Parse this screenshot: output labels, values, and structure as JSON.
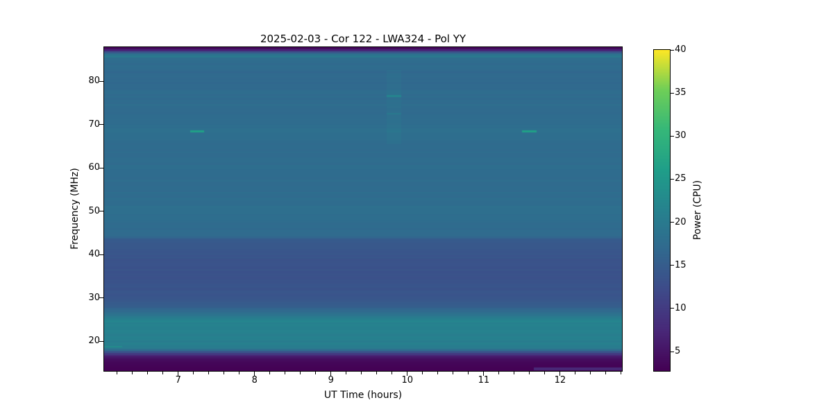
{
  "chart_data": {
    "type": "heatmap",
    "title": "2025-02-03 - Cor 122 - LWA324 - Pol YY",
    "xlabel": "UT Time (hours)",
    "ylabel": "Frequency (MHz)",
    "colorbar_label": "Power (CPU)",
    "colormap": "viridis",
    "colormap_stops": [
      "#440154",
      "#482878",
      "#3e4a89",
      "#31688e",
      "#26828e",
      "#1f9e89",
      "#35b779",
      "#6ece58",
      "#fde725"
    ],
    "x_range_hours": [
      6.03,
      12.81
    ],
    "y_range_mhz": [
      13.12,
      87.84
    ],
    "color_range_cpu": [
      2.75,
      40
    ],
    "x_ticks": [
      7,
      8,
      9,
      10,
      11,
      12
    ],
    "x_minor_tick_step_hours": 0.2,
    "y_ticks": [
      20,
      30,
      40,
      50,
      60,
      70,
      80
    ],
    "colorbar_ticks": [
      5,
      10,
      15,
      20,
      25,
      30,
      35,
      40
    ],
    "grid": false,
    "channel_width_mhz": 0.47,
    "frequency_power_profile": [
      [
        13.12,
        2.85
      ],
      [
        14.0,
        2.95
      ],
      [
        15.0,
        3.4
      ],
      [
        15.8,
        4.3
      ],
      [
        16.4,
        6.0
      ],
      [
        16.9,
        8.5
      ],
      [
        17.3,
        11.5
      ],
      [
        17.7,
        15.0
      ],
      [
        18.0,
        18.0
      ],
      [
        18.35,
        20.5
      ],
      [
        18.7,
        19.6
      ],
      [
        19.0,
        20.6
      ],
      [
        19.4,
        21.2
      ],
      [
        19.8,
        20.0
      ],
      [
        20.3,
        20.6
      ],
      [
        20.9,
        21.3
      ],
      [
        21.5,
        20.4
      ],
      [
        22.1,
        21.5
      ],
      [
        22.7,
        20.8
      ],
      [
        23.4,
        21.6
      ],
      [
        24.1,
        21.2
      ],
      [
        24.8,
        21.6
      ],
      [
        25.4,
        20.4
      ],
      [
        26.0,
        19.2
      ],
      [
        26.6,
        17.9
      ],
      [
        27.2,
        16.6
      ],
      [
        27.9,
        15.4
      ],
      [
        28.8,
        14.6
      ],
      [
        30.0,
        14.1
      ],
      [
        31.5,
        13.8
      ],
      [
        33.0,
        13.5
      ],
      [
        34.5,
        13.2
      ],
      [
        36.0,
        13.3
      ],
      [
        37.5,
        13.5
      ],
      [
        39.0,
        13.6
      ],
      [
        40.5,
        13.8
      ],
      [
        42.0,
        14.1
      ],
      [
        43.0,
        14.4
      ],
      [
        43.6,
        15.2
      ],
      [
        44.1,
        16.8
      ],
      [
        44.8,
        17.3
      ],
      [
        46.0,
        17.5
      ],
      [
        48.0,
        17.6
      ],
      [
        50.0,
        17.9
      ],
      [
        52.0,
        17.6
      ],
      [
        54.0,
        17.5
      ],
      [
        56.0,
        17.4
      ],
      [
        58.0,
        17.6
      ],
      [
        60.0,
        17.7
      ],
      [
        62.0,
        17.4
      ],
      [
        64.0,
        17.3
      ],
      [
        66.0,
        17.6
      ],
      [
        67.5,
        17.9
      ],
      [
        68.5,
        18.1
      ],
      [
        70.0,
        17.8
      ],
      [
        71.5,
        17.6
      ],
      [
        73.0,
        17.2
      ],
      [
        74.5,
        17.6
      ],
      [
        76.0,
        17.2
      ],
      [
        77.5,
        17.4
      ],
      [
        79.0,
        17.0
      ],
      [
        80.5,
        17.2
      ],
      [
        82.0,
        16.7
      ],
      [
        83.0,
        17.5
      ],
      [
        84.0,
        16.7
      ],
      [
        84.6,
        18.3
      ],
      [
        85.1,
        17.1
      ],
      [
        85.5,
        19.2
      ],
      [
        85.9,
        20.4
      ],
      [
        86.3,
        18.0
      ],
      [
        86.7,
        13.5
      ],
      [
        87.0,
        9.0
      ],
      [
        87.3,
        5.5
      ],
      [
        87.6,
        3.6
      ],
      [
        87.84,
        3.0
      ]
    ],
    "features": [
      {
        "label": "column-glow",
        "t0": 9.73,
        "t1": 9.92,
        "f0": 65.5,
        "f1": 82.5,
        "power_delta": 0.7
      },
      {
        "label": "rfi-burst",
        "t0": 7.16,
        "t1": 7.34,
        "f0": 68.2,
        "f1": 68.65,
        "power": 26.5
      },
      {
        "label": "rfi-burst",
        "t0": 11.5,
        "t1": 11.69,
        "f0": 68.2,
        "f1": 68.65,
        "power": 26.5
      },
      {
        "label": "rfi-burst",
        "t0": 9.73,
        "t1": 9.92,
        "f0": 76.3,
        "f1": 76.75,
        "power": 21.8
      },
      {
        "label": "rfi-burst",
        "t0": 9.73,
        "t1": 9.92,
        "f0": 72.3,
        "f1": 72.7,
        "power": 19.8
      },
      {
        "label": "rfi-burst",
        "t0": 9.73,
        "t1": 9.92,
        "f0": 68.2,
        "f1": 68.6,
        "power": 19.3
      },
      {
        "label": "low-band-streak",
        "t0": 11.66,
        "t1": 12.81,
        "f0": 13.25,
        "f1": 13.95,
        "power": 7.5
      },
      {
        "label": "edge-burst",
        "t0": 6.03,
        "t1": 6.27,
        "f0": 18.5,
        "f1": 18.95,
        "power": 23.0
      }
    ]
  }
}
